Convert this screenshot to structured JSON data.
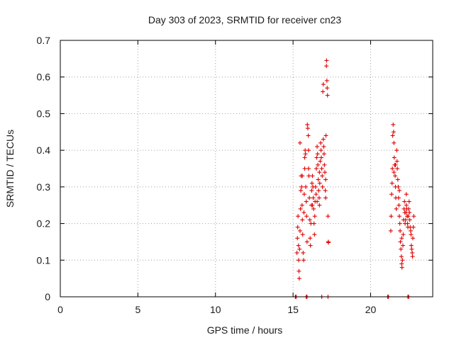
{
  "chart_data": {
    "type": "scatter",
    "title": "Day 303 of 2023, SRMTID for receiver cn23",
    "xlabel": "GPS time / hours",
    "ylabel": "SRMTID / TECUs",
    "xlim": [
      0,
      24
    ],
    "ylim": [
      0,
      0.7
    ],
    "x_ticks": [
      0,
      5,
      10,
      15,
      20
    ],
    "y_ticks": [
      0,
      0.1,
      0.2,
      0.3,
      0.4,
      0.5,
      0.6,
      0.7
    ],
    "x_tick_labels": [
      "0",
      "5",
      "10",
      "15",
      "20"
    ],
    "y_tick_labels": [
      "0",
      "0.1",
      "0.2",
      "0.3",
      "0.4",
      "0.5",
      "0.6",
      "0.7"
    ],
    "grid": true,
    "marker": "plus",
    "color": "#e00000",
    "series": [
      {
        "points": [
          [
            15.15,
            0.0
          ],
          [
            15.2,
            0.0
          ],
          [
            15.85,
            0.0
          ],
          [
            15.9,
            0.0
          ],
          [
            16.85,
            0.0
          ],
          [
            17.25,
            0.0
          ],
          [
            15.25,
            0.12
          ],
          [
            15.28,
            0.16
          ],
          [
            15.3,
            0.19
          ],
          [
            15.32,
            0.22
          ],
          [
            15.35,
            0.14
          ],
          [
            15.36,
            0.1
          ],
          [
            15.38,
            0.07
          ],
          [
            15.4,
            0.05
          ],
          [
            15.42,
            0.13
          ],
          [
            15.45,
            0.18
          ],
          [
            15.48,
            0.24
          ],
          [
            15.5,
            0.29
          ],
          [
            15.52,
            0.33
          ],
          [
            15.55,
            0.3
          ],
          [
            15.58,
            0.25
          ],
          [
            15.6,
            0.21
          ],
          [
            15.62,
            0.17
          ],
          [
            15.65,
            0.12
          ],
          [
            15.68,
            0.1
          ],
          [
            15.7,
            0.23
          ],
          [
            15.72,
            0.28
          ],
          [
            15.75,
            0.38
          ],
          [
            15.78,
            0.4
          ],
          [
            15.8,
            0.39
          ],
          [
            15.82,
            0.3
          ],
          [
            15.85,
            0.26
          ],
          [
            15.87,
            0.22
          ],
          [
            15.9,
            0.15
          ],
          [
            15.92,
            0.47
          ],
          [
            15.95,
            0.46
          ],
          [
            15.98,
            0.44
          ],
          [
            16.0,
            0.4
          ],
          [
            16.02,
            0.33
          ],
          [
            16.05,
            0.27
          ],
          [
            16.08,
            0.21
          ],
          [
            16.1,
            0.16
          ],
          [
            16.12,
            0.14
          ],
          [
            16.15,
            0.2
          ],
          [
            16.18,
            0.25
          ],
          [
            16.2,
            0.29
          ],
          [
            16.22,
            0.31
          ],
          [
            16.25,
            0.33
          ],
          [
            16.28,
            0.3
          ],
          [
            16.3,
            0.27
          ],
          [
            16.32,
            0.24
          ],
          [
            16.35,
            0.2
          ],
          [
            16.38,
            0.17
          ],
          [
            16.4,
            0.22
          ],
          [
            16.42,
            0.26
          ],
          [
            16.45,
            0.3
          ],
          [
            16.48,
            0.28
          ],
          [
            16.5,
            0.35
          ],
          [
            16.52,
            0.38
          ],
          [
            16.55,
            0.41
          ],
          [
            16.58,
            0.39
          ],
          [
            16.6,
            0.36
          ],
          [
            16.62,
            0.32
          ],
          [
            16.65,
            0.29
          ],
          [
            16.68,
            0.27
          ],
          [
            16.7,
            0.25
          ],
          [
            16.72,
            0.31
          ],
          [
            16.75,
            0.37
          ],
          [
            16.78,
            0.42
          ],
          [
            16.8,
            0.4
          ],
          [
            16.82,
            0.38
          ],
          [
            16.85,
            0.35
          ],
          [
            16.88,
            0.33
          ],
          [
            16.9,
            0.3
          ],
          [
            16.92,
            0.56
          ],
          [
            16.95,
            0.58
          ],
          [
            16.98,
            0.41
          ],
          [
            17.0,
            0.39
          ],
          [
            17.02,
            0.36
          ],
          [
            17.05,
            0.34
          ],
          [
            17.08,
            0.29
          ],
          [
            17.1,
            0.27
          ],
          [
            17.12,
            0.44
          ],
          [
            17.15,
            0.63
          ],
          [
            17.16,
            0.645
          ],
          [
            17.18,
            0.59
          ],
          [
            17.2,
            0.57
          ],
          [
            17.22,
            0.55
          ],
          [
            17.25,
            0.22
          ],
          [
            17.27,
            0.15
          ],
          [
            17.28,
            0.148
          ],
          [
            15.45,
            0.42
          ],
          [
            16.0,
            0.35
          ],
          [
            16.55,
            0.26
          ],
          [
            16.7,
            0.34
          ],
          [
            16.95,
            0.43
          ],
          [
            17.1,
            0.32
          ],
          [
            15.6,
            0.33
          ],
          [
            15.75,
            0.35
          ],
          [
            16.25,
            0.25
          ],
          [
            21.1,
            0.0
          ],
          [
            21.15,
            0.0
          ],
          [
            22.4,
            0.0
          ],
          [
            22.45,
            0.0
          ],
          [
            21.3,
            0.18
          ],
          [
            21.32,
            0.22
          ],
          [
            21.35,
            0.28
          ],
          [
            21.38,
            0.31
          ],
          [
            21.4,
            0.35
          ],
          [
            21.42,
            0.44
          ],
          [
            21.45,
            0.47
          ],
          [
            21.48,
            0.45
          ],
          [
            21.5,
            0.42
          ],
          [
            21.52,
            0.38
          ],
          [
            21.55,
            0.36
          ],
          [
            21.58,
            0.33
          ],
          [
            21.6,
            0.3
          ],
          [
            21.62,
            0.27
          ],
          [
            21.65,
            0.24
          ],
          [
            21.68,
            0.4
          ],
          [
            21.7,
            0.37
          ],
          [
            21.72,
            0.35
          ],
          [
            21.75,
            0.32
          ],
          [
            21.78,
            0.3
          ],
          [
            21.8,
            0.27
          ],
          [
            21.82,
            0.25
          ],
          [
            21.85,
            0.22
          ],
          [
            21.88,
            0.2
          ],
          [
            21.9,
            0.18
          ],
          [
            21.92,
            0.15
          ],
          [
            21.95,
            0.13
          ],
          [
            21.98,
            0.11
          ],
          [
            22.0,
            0.09
          ],
          [
            22.02,
            0.08
          ],
          [
            22.05,
            0.1
          ],
          [
            22.08,
            0.14
          ],
          [
            22.1,
            0.17
          ],
          [
            22.12,
            0.21
          ],
          [
            22.15,
            0.24
          ],
          [
            22.18,
            0.26
          ],
          [
            22.2,
            0.23
          ],
          [
            22.22,
            0.2
          ],
          [
            22.25,
            0.21
          ],
          [
            22.28,
            0.23
          ],
          [
            22.3,
            0.25
          ],
          [
            22.32,
            0.24
          ],
          [
            22.35,
            0.22
          ],
          [
            22.38,
            0.2
          ],
          [
            22.4,
            0.19
          ],
          [
            22.42,
            0.22
          ],
          [
            22.45,
            0.24
          ],
          [
            22.48,
            0.26
          ],
          [
            22.5,
            0.23
          ],
          [
            22.52,
            0.21
          ],
          [
            22.55,
            0.19
          ],
          [
            22.58,
            0.18
          ],
          [
            22.6,
            0.17
          ],
          [
            22.62,
            0.14
          ],
          [
            22.65,
            0.13
          ],
          [
            22.68,
            0.12
          ],
          [
            22.7,
            0.11
          ],
          [
            22.72,
            0.16
          ],
          [
            22.75,
            0.19
          ],
          [
            22.78,
            0.22
          ],
          [
            21.5,
            0.34
          ],
          [
            21.6,
            0.36
          ],
          [
            21.85,
            0.29
          ],
          [
            22.0,
            0.16
          ],
          [
            22.3,
            0.28
          ]
        ]
      }
    ]
  }
}
